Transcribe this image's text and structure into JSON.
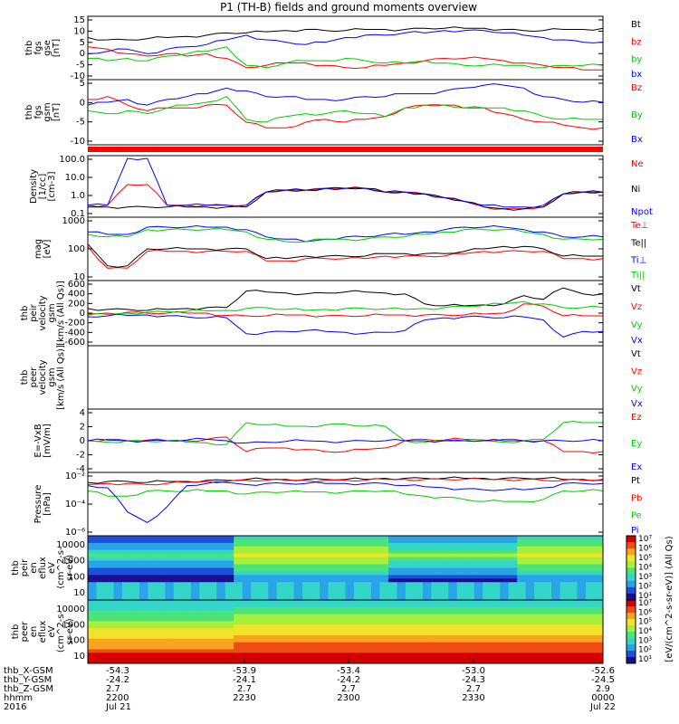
{
  "title": "P1 (TH-B) fields and ground moments overview",
  "colors": {
    "black": "#000000",
    "red": "#ff0000",
    "green": "#00cc00",
    "blue": "#0000ff"
  },
  "chart_data": [
    {
      "type": "line",
      "ylabel": [
        "thb",
        "fgs",
        "gse",
        "[nT]"
      ],
      "yticks": [
        "15",
        "10",
        "5",
        "0",
        "-5",
        "-10"
      ],
      "ylim": [
        -10,
        15
      ],
      "series": [
        {
          "name": "Bt",
          "color": "black",
          "values": [
            7,
            6,
            6,
            6.5,
            7,
            7.5,
            8,
            9,
            9,
            9.5,
            10,
            10.5,
            10,
            10,
            10.5,
            10.5,
            10.5,
            11,
            11,
            11,
            11,
            10.5,
            10,
            10,
            10.5,
            10.5,
            11
          ]
        },
        {
          "name": "bz",
          "color": "red",
          "values": [
            3,
            2,
            0,
            -1,
            0,
            -1,
            0,
            -2,
            -6,
            -5,
            -4,
            -4,
            -5,
            -6,
            -6,
            -5,
            -4,
            -3,
            -2,
            -2,
            -2,
            -3,
            -4,
            -5,
            -6,
            -7,
            -7
          ]
        },
        {
          "name": "by",
          "color": "green",
          "values": [
            -2,
            -3,
            -2,
            -3,
            -1,
            0,
            1,
            3,
            -5,
            -6,
            -4,
            -3,
            -3,
            -2,
            -3,
            -4,
            -4,
            -3,
            -4,
            -5,
            -5,
            -5,
            -5,
            -6,
            -5,
            -5,
            -5
          ]
        },
        {
          "name": "bx",
          "color": "blue",
          "values": [
            0,
            1,
            2,
            0,
            2,
            3,
            4,
            6,
            8,
            6,
            5,
            4,
            5,
            7,
            8,
            8,
            9,
            9,
            10,
            10,
            10,
            9,
            8,
            7,
            6,
            5,
            5
          ]
        }
      ]
    },
    {
      "type": "line",
      "ylabel": [
        "thb",
        "fgs",
        "gsm",
        "[nT]"
      ],
      "yticks": [
        "5",
        "0",
        "-5",
        "-10"
      ],
      "ylim": [
        -13,
        8
      ],
      "series": [
        {
          "name": "Bz",
          "color": "red",
          "values": [
            2,
            3,
            0,
            -2,
            -1,
            -1,
            0,
            0,
            -6,
            -8,
            -8,
            -6,
            -5,
            -6,
            -5,
            -4,
            -1,
            0,
            0,
            -1,
            -1,
            -3,
            -5,
            -6,
            -7,
            -8,
            -8
          ]
        },
        {
          "name": "By",
          "color": "green",
          "values": [
            -2,
            -3,
            -2,
            -3,
            -1,
            0,
            1,
            3,
            -5,
            -6,
            -4,
            -3,
            -3,
            -2,
            -3,
            -4,
            -1,
            0,
            0,
            -1,
            -1,
            -1,
            -2,
            -4,
            -5,
            -5,
            -5
          ]
        },
        {
          "name": "Bx",
          "color": "blue",
          "values": [
            0,
            1,
            2,
            0,
            2,
            3,
            4,
            6,
            5,
            3,
            3,
            2,
            2,
            2,
            3,
            3,
            4,
            4,
            5,
            6,
            7,
            7,
            6,
            3,
            2,
            1,
            1
          ]
        }
      ]
    },
    {
      "type": "line",
      "ylabel": [
        "Density",
        "[1/cc]",
        "[cm-3]"
      ],
      "yticks": [
        "100.0",
        "10.0",
        "1.0",
        "0.1"
      ],
      "ylim": [
        -1,
        2
      ],
      "log": true,
      "series": [
        {
          "name": "Ne",
          "color": "red",
          "values": [
            -0.5,
            -0.5,
            0.6,
            0.6,
            -0.5,
            -0.5,
            -0.5,
            -0.5,
            -0.5,
            0.2,
            0.3,
            0.3,
            0.4,
            0.4,
            0.4,
            0.2,
            0.2,
            0.1,
            -0.1,
            -0.3,
            -0.6,
            -0.7,
            -0.7,
            -0.6,
            0.1,
            0.2,
            0.2
          ]
        },
        {
          "name": "Ni",
          "color": "black",
          "values": [
            -0.6,
            -0.6,
            -0.6,
            -0.6,
            -0.6,
            -0.6,
            -0.6,
            -0.6,
            -0.6,
            0.2,
            0.3,
            0.3,
            0.4,
            0.4,
            0.4,
            0.2,
            0.2,
            0.1,
            -0.1,
            -0.3,
            -0.6,
            -0.7,
            -0.7,
            -0.6,
            0.1,
            0.2,
            0.2
          ]
        },
        {
          "name": "Npot",
          "color": "blue",
          "values": [
            -0.5,
            -0.5,
            2,
            2,
            -0.5,
            -0.5,
            -0.5,
            -0.5,
            -0.5,
            0.2,
            0.3,
            0.3,
            0.4,
            0.4,
            0.4,
            0.2,
            0.2,
            0.1,
            -0.1,
            -0.3,
            -0.5,
            -0.6,
            -0.6,
            -0.5,
            0.1,
            0.2,
            0.2
          ]
        }
      ]
    },
    {
      "type": "line",
      "ylabel": [
        "mag",
        "[eV]"
      ],
      "yticks": [
        "1000",
        "100",
        "10"
      ],
      "ylim": [
        0.9,
        3.3
      ],
      "log": true,
      "series": [
        {
          "name": "Te⊥",
          "color": "red",
          "values": [
            2.2,
            1.3,
            1.3,
            2.0,
            2.0,
            2.0,
            2.0,
            2.0,
            2.0,
            1.6,
            1.6,
            1.7,
            1.7,
            1.7,
            1.7,
            1.8,
            1.8,
            1.8,
            1.8,
            1.9,
            2.0,
            2.0,
            2.0,
            2.0,
            1.7,
            1.7,
            1.7
          ]
        },
        {
          "name": "Te||",
          "color": "black",
          "values": [
            2.3,
            1.4,
            1.4,
            2.1,
            2.1,
            2.1,
            2.1,
            2.1,
            2.1,
            1.7,
            1.7,
            1.8,
            1.8,
            1.8,
            1.8,
            1.9,
            1.9,
            1.9,
            1.9,
            2.0,
            2.1,
            2.2,
            2.2,
            2.1,
            1.8,
            1.8,
            1.8
          ]
        },
        {
          "name": "Ti⊥",
          "color": "blue",
          "values": [
            2.8,
            2.7,
            2.7,
            3.0,
            3.0,
            3.0,
            3.0,
            3.0,
            2.9,
            2.6,
            2.5,
            2.4,
            2.5,
            2.6,
            2.6,
            2.7,
            2.7,
            2.8,
            2.9,
            3.0,
            3.0,
            3.0,
            2.9,
            2.8,
            2.6,
            2.6,
            2.6
          ]
        },
        {
          "name": "Ti||",
          "color": "green",
          "values": [
            2.7,
            2.6,
            2.6,
            2.9,
            2.9,
            2.9,
            2.9,
            2.9,
            2.8,
            2.5,
            2.4,
            2.4,
            2.5,
            2.5,
            2.5,
            2.6,
            2.6,
            2.7,
            2.8,
            2.9,
            2.9,
            2.9,
            2.8,
            2.7,
            2.5,
            2.5,
            2.5
          ]
        }
      ]
    },
    {
      "type": "line",
      "ylabel": [
        "thb",
        "peir",
        "velocity",
        "gsm",
        "[km/s (All Qs)]"
      ],
      "yticks": [
        "600",
        "400",
        "200",
        "0",
        "-200",
        "-400",
        "-600"
      ],
      "ylim": [
        -650,
        650
      ],
      "series": [
        {
          "name": "Vt",
          "color": "black",
          "values": [
            100,
            80,
            80,
            60,
            80,
            100,
            120,
            120,
            480,
            460,
            440,
            420,
            440,
            460,
            460,
            440,
            420,
            200,
            160,
            160,
            180,
            200,
            380,
            300,
            550,
            420,
            420
          ]
        },
        {
          "name": "Vz",
          "color": "red",
          "values": [
            -20,
            0,
            20,
            0,
            0,
            0,
            0,
            -50,
            -60,
            -60,
            -40,
            -40,
            -60,
            -60,
            -60,
            -40,
            -40,
            -40,
            -40,
            -40,
            -20,
            0,
            200,
            150,
            -60,
            -60,
            -60
          ]
        },
        {
          "name": "Vy",
          "color": "green",
          "values": [
            -50,
            -30,
            0,
            20,
            30,
            40,
            50,
            60,
            100,
            120,
            80,
            60,
            80,
            100,
            100,
            90,
            80,
            100,
            120,
            150,
            170,
            200,
            250,
            200,
            120,
            120,
            120
          ]
        },
        {
          "name": "Vx",
          "color": "blue",
          "values": [
            -80,
            -60,
            -50,
            -40,
            -60,
            -80,
            -100,
            -100,
            -450,
            -420,
            -400,
            -380,
            -400,
            -420,
            -440,
            -420,
            -380,
            -150,
            -100,
            -80,
            -80,
            -100,
            -80,
            -150,
            -520,
            -400,
            -400
          ]
        }
      ]
    },
    {
      "type": "line",
      "ylabel": [
        "thb",
        "peer",
        "velocity",
        "gsm",
        "[km/s (All Qs)]"
      ],
      "yticks": [],
      "ylim": [
        -1,
        1
      ],
      "series": [
        {
          "name": "Vt",
          "color": "black",
          "values": []
        },
        {
          "name": "Vz",
          "color": "red",
          "values": []
        },
        {
          "name": "Vy",
          "color": "green",
          "values": []
        },
        {
          "name": "Vx",
          "color": "blue",
          "values": []
        }
      ]
    },
    {
      "type": "line",
      "ylabel": [
        "E=-VxB",
        "[mV/m]"
      ],
      "yticks": [
        "4",
        "2",
        "0",
        "-2",
        "-4"
      ],
      "ylim": [
        -4,
        4
      ],
      "series": [
        {
          "name": "Ez",
          "color": "red",
          "values": [
            0,
            0.2,
            0,
            0.1,
            0,
            0,
            0.2,
            0.5,
            -1.5,
            -1,
            -1,
            -1.2,
            -1.5,
            -1.5,
            -1.2,
            -1,
            0,
            0.2,
            0.1,
            0.2,
            0.1,
            0.2,
            0,
            0,
            -1.5,
            -1.5,
            -1.5
          ]
        },
        {
          "name": "Ey",
          "color": "green",
          "values": [
            0,
            -0.2,
            0,
            -0.1,
            0,
            -0.2,
            -0.3,
            -0.5,
            2.5,
            2.2,
            2,
            2,
            2.2,
            2.3,
            2,
            2,
            0,
            -0.2,
            0,
            0,
            0,
            -0.2,
            0,
            0.2,
            2.5,
            2.5,
            2.5
          ]
        },
        {
          "name": "Ex",
          "color": "blue",
          "values": [
            0,
            0.1,
            0,
            0,
            0,
            0.1,
            0.2,
            0,
            -0.3,
            -0.2,
            -0.1,
            0,
            -0.1,
            -0.1,
            0,
            0,
            0,
            0,
            0,
            0,
            0,
            0,
            0,
            0,
            0,
            0,
            0
          ]
        }
      ]
    },
    {
      "type": "line",
      "ylabel": [
        "Pressure",
        "[nPa]"
      ],
      "yticks": [
        "10⁻²",
        "10⁻⁴",
        "10⁻⁶"
      ],
      "ylim": [
        -6.5,
        -1
      ],
      "log": true,
      "series": [
        {
          "name": "Pt",
          "color": "black",
          "values": [
            -1.7,
            -1.6,
            -1.6,
            -1.7,
            -1.6,
            -1.6,
            -1.5,
            -1.5,
            -1.4,
            -1.4,
            -1.4,
            -1.4,
            -1.4,
            -1.4,
            -1.4,
            -1.3,
            -1.3,
            -1.3,
            -1.3,
            -1.3,
            -1.3,
            -1.3,
            -1.3,
            -1.3,
            -1.4,
            -1.4,
            -1.4
          ]
        },
        {
          "name": "Pb",
          "color": "red",
          "values": [
            -1.9,
            -1.8,
            -1.8,
            -1.9,
            -1.8,
            -1.7,
            -1.6,
            -1.6,
            -1.5,
            -1.5,
            -1.5,
            -1.5,
            -1.5,
            -1.5,
            -1.5,
            -1.4,
            -1.4,
            -1.4,
            -1.4,
            -1.4,
            -1.4,
            -1.4,
            -1.4,
            -1.5,
            -1.5,
            -1.5,
            -1.5
          ]
        },
        {
          "name": "Pe",
          "color": "green",
          "values": [
            -2.5,
            -3,
            -3,
            -2.5,
            -2.5,
            -2.5,
            -2.5,
            -2.5,
            -2.8,
            -2.6,
            -2.6,
            -2.6,
            -2.6,
            -2.6,
            -2.5,
            -2.5,
            -2.8,
            -3,
            -3.1,
            -3.3,
            -3.5,
            -3.5,
            -3.5,
            -3.3,
            -2.5,
            -2.5,
            -2.5
          ]
        },
        {
          "name": "Pi",
          "color": "blue",
          "values": [
            -2,
            -2.2,
            -4.5,
            -5.5,
            -4,
            -2,
            -1.8,
            -1.7,
            -1.9,
            -1.8,
            -1.8,
            -1.8,
            -1.8,
            -1.8,
            -1.8,
            -1.8,
            -2,
            -2.1,
            -2.2,
            -2.3,
            -2.4,
            -2.4,
            -2.4,
            -2.2,
            -1.8,
            -1.8,
            -1.8
          ]
        }
      ]
    },
    {
      "type": "heatmap",
      "ylabel": [
        "thb",
        "peir",
        "en",
        "eflux",
        "eV",
        "(cm^2-s-",
        "sr-eV)"
      ],
      "yticks": [
        "10000",
        "1000",
        "100",
        "10"
      ]
    },
    {
      "type": "heatmap",
      "ylabel": [
        "thb",
        "peer",
        "en",
        "eflux",
        "eV",
        "(cm^2-s-",
        "sr-eV)"
      ],
      "yticks": [
        "10000",
        "1000",
        "100",
        "10"
      ]
    }
  ],
  "colorbar": {
    "label": "[eV/(cm^2-s-sr-eV)] (All Qs)",
    "ticks_top": [
      "10⁷",
      "10⁶",
      "10⁵",
      "10⁴",
      "10³",
      "10²",
      "10¹"
    ],
    "ticks_bottom": [
      "10⁷",
      "10⁶",
      "10⁵",
      "10⁴",
      "10³",
      "10²",
      "10¹"
    ]
  },
  "x_axis": {
    "rows": [
      {
        "label": "thb_X-GSM",
        "values": [
          "-54.3",
          "-53.9",
          "-53.4",
          "-53.0",
          "-52.6"
        ]
      },
      {
        "label": "thb_Y-GSM",
        "values": [
          "-24.2",
          "-24.1",
          "-24.2",
          "-24.3",
          "-24.5"
        ]
      },
      {
        "label": "thb_Z-GSM",
        "values": [
          "2.7",
          "2.7",
          "2.7",
          "2.7",
          "2.9"
        ]
      },
      {
        "label": "hhmm",
        "values": [
          "2200",
          "2230",
          "2300",
          "2330",
          "0000"
        ]
      },
      {
        "label": "2016",
        "values": [
          "Jul 21",
          "",
          "",
          "",
          "Jul 22"
        ]
      }
    ]
  }
}
